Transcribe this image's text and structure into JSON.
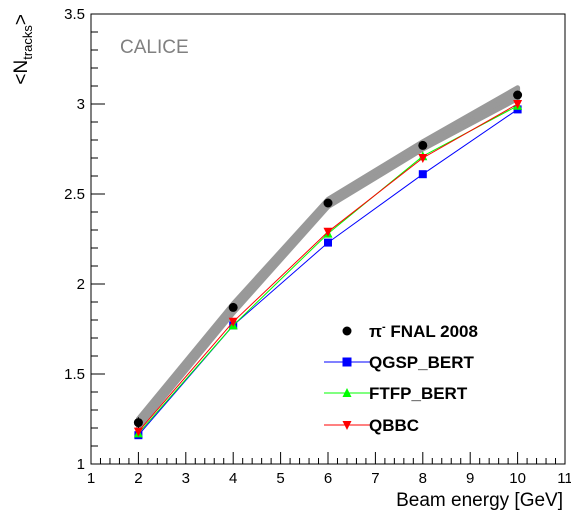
{
  "chart_data": {
    "type": "line",
    "annotation": "CALICE",
    "xlabel": "Beam energy [GeV]",
    "ylabel": "<Ntracks>",
    "ylabel_main": "<N",
    "ylabel_sub": "tracks",
    "ylabel_end": ">",
    "xlim": [
      1,
      11
    ],
    "ylim": [
      1,
      3.5
    ],
    "x_ticks": [
      1,
      2,
      3,
      4,
      5,
      6,
      7,
      8,
      9,
      10,
      11
    ],
    "y_ticks": [
      1,
      1.5,
      2,
      2.5,
      3,
      3.5
    ],
    "y_tick_labels": [
      "1",
      "1.5",
      "2",
      "2.5",
      "3",
      "3.5"
    ],
    "x": [
      2,
      4,
      6,
      8,
      10
    ],
    "series": [
      {
        "name": "π⁻ FNAL 2008",
        "name_main": "π",
        "name_sup": "-",
        "name_rest": " FNAL 2008",
        "marker": "circle",
        "color": "#000000",
        "values": [
          1.23,
          1.87,
          2.45,
          2.77,
          3.05
        ],
        "errors": [
          0.03,
          0.02,
          0.02,
          0.02,
          0.02
        ]
      },
      {
        "name": "QGSP_BERT",
        "marker": "square",
        "color": "#0000ff",
        "values": [
          1.16,
          1.77,
          2.23,
          2.61,
          2.97
        ]
      },
      {
        "name": "FTFP_BERT",
        "marker": "triangle-up",
        "color": "#00ff00",
        "values": [
          1.17,
          1.77,
          2.28,
          2.71,
          2.99
        ]
      },
      {
        "name": "QBBC",
        "marker": "triangle-down",
        "color": "#ff0000",
        "values": [
          1.18,
          1.79,
          2.29,
          2.7,
          3.0
        ]
      }
    ],
    "systematic_band": {
      "color": "#999999",
      "lower": [
        1.2,
        1.84,
        2.43,
        2.75,
        3.03
      ],
      "upper": [
        1.25,
        1.89,
        2.47,
        2.79,
        3.09
      ]
    },
    "grid": false,
    "legend_position": "bottom-right"
  }
}
